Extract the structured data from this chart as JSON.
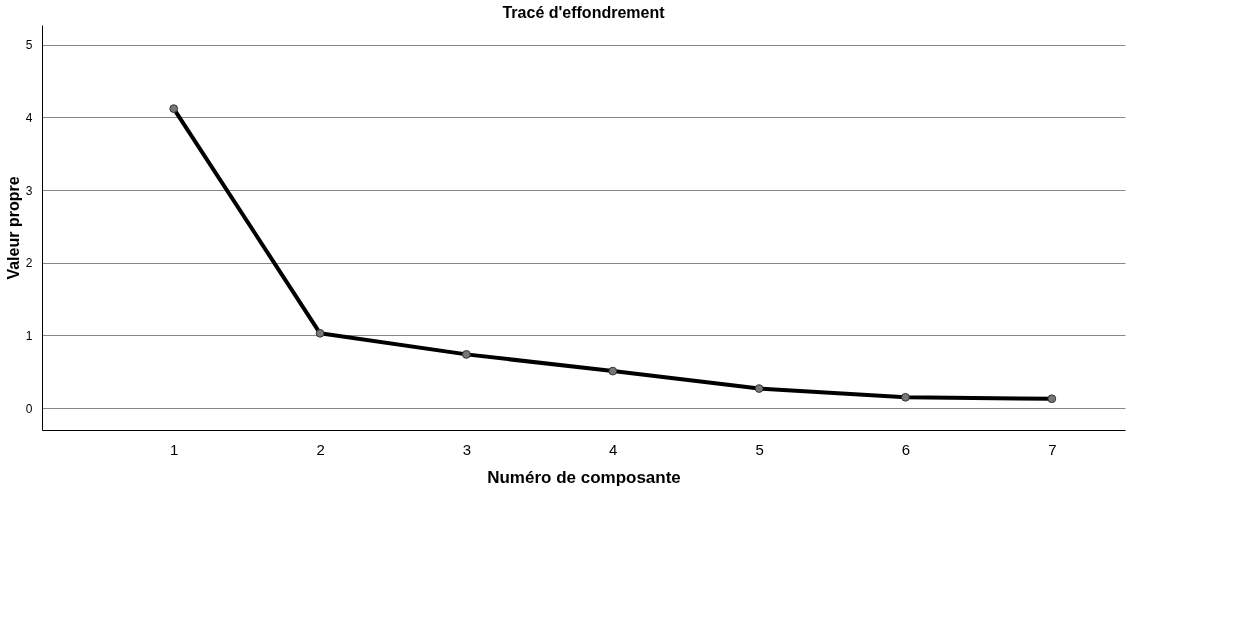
{
  "chart_data": {
    "type": "line",
    "title": "Tracé d'effondrement",
    "xlabel": "Numéro de composante",
    "ylabel": "Valeur propre",
    "x": [
      1,
      2,
      3,
      4,
      5,
      6,
      7
    ],
    "series": [
      {
        "color": "#000000",
        "values": [
          4.12,
          1.03,
          0.74,
          0.51,
          0.27,
          0.15,
          0.13
        ]
      }
    ],
    "xlim": [
      0.1,
      7.5
    ],
    "xticks": [
      1,
      2,
      3,
      4,
      5,
      6,
      7
    ],
    "ylim": [
      -0.3,
      5.27
    ],
    "yticks": [
      0,
      1,
      2,
      3,
      4,
      5
    ],
    "grid": "y",
    "marker": "circle",
    "line_style": "solid"
  }
}
